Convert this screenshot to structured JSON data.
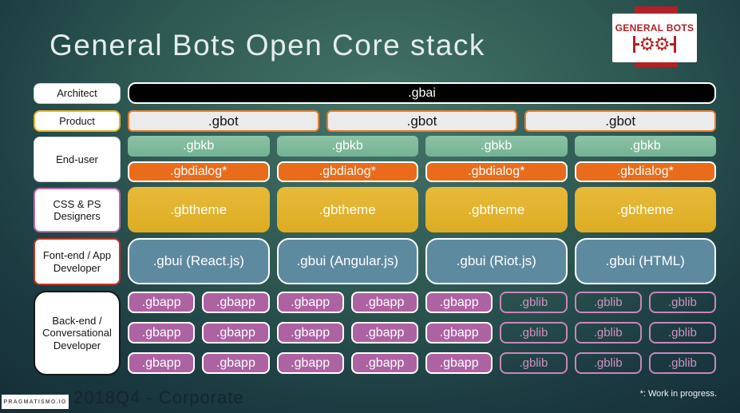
{
  "slide": {
    "title": "General Bots Open Core stack",
    "footer": "2018Q4 - Corporate",
    "footnote": "*: Work in progress.",
    "vendor": "PRAGMATISMO.IO"
  },
  "logo": {
    "brand": "GENERAL BOTS",
    "gear_glyph": "⚙"
  },
  "labels": {
    "architect": "Architect",
    "product": "Product",
    "end_user": "End-user",
    "designers": "CSS & PS Designers",
    "frontend": "Font-end / App Developer",
    "backend": "Back-end / Conversational Developer"
  },
  "stack": {
    "gbai": {
      "items": [
        ".gbai"
      ]
    },
    "gbot": {
      "items": [
        ".gbot",
        ".gbot",
        ".gbot"
      ]
    },
    "gbkb": {
      "items": [
        ".gbkb",
        ".gbkb",
        ".gbkb",
        ".gbkb"
      ]
    },
    "gbdialog": {
      "items": [
        ".gbdialog*",
        ".gbdialog*",
        ".gbdialog*",
        ".gbdialog*"
      ]
    },
    "gbtheme": {
      "items": [
        ".gbtheme",
        ".gbtheme",
        ".gbtheme",
        ".gbtheme"
      ]
    },
    "gbui": {
      "items": [
        ".gbui (React.js)",
        ".gbui (Angular.js)",
        ".gbui (Riot.js)",
        ".gbui (HTML)"
      ]
    },
    "backend_rows": [
      {
        "items": [
          ".gbapp",
          ".gbapp",
          ".gbapp",
          ".gbapp",
          ".gbapp",
          ".gblib",
          ".gblib",
          ".gblib"
        ]
      },
      {
        "items": [
          ".gbapp",
          ".gbapp",
          ".gbapp",
          ".gbapp",
          ".gbapp",
          ".gblib",
          ".gblib",
          ".gblib"
        ]
      },
      {
        "items": [
          ".gbapp",
          ".gbapp",
          ".gbapp",
          ".gbapp",
          ".gbapp",
          ".gblib",
          ".gblib",
          ".gblib"
        ]
      }
    ]
  },
  "colors": {
    "background_center": "#447468",
    "background_edge": "#142c36",
    "gbai_fill": "#000000",
    "gbot_fill": "#ebebeb",
    "gbot_border": "#e87d2e",
    "gbkb_fill": "#7db99c",
    "gbdialog_fill": "#ea6c1a",
    "gbtheme_fill": "#e2b32c",
    "gbui_fill": "#5e8aa0",
    "gbapp_fill": "#ad62a2",
    "gblib_outline": "#c887bc",
    "logo_red": "#b32025",
    "label_product_border": "#e3b32a",
    "label_designers_border": "#c06ab0",
    "label_frontend_border": "#c1352a",
    "label_backend_border": "#161616"
  }
}
